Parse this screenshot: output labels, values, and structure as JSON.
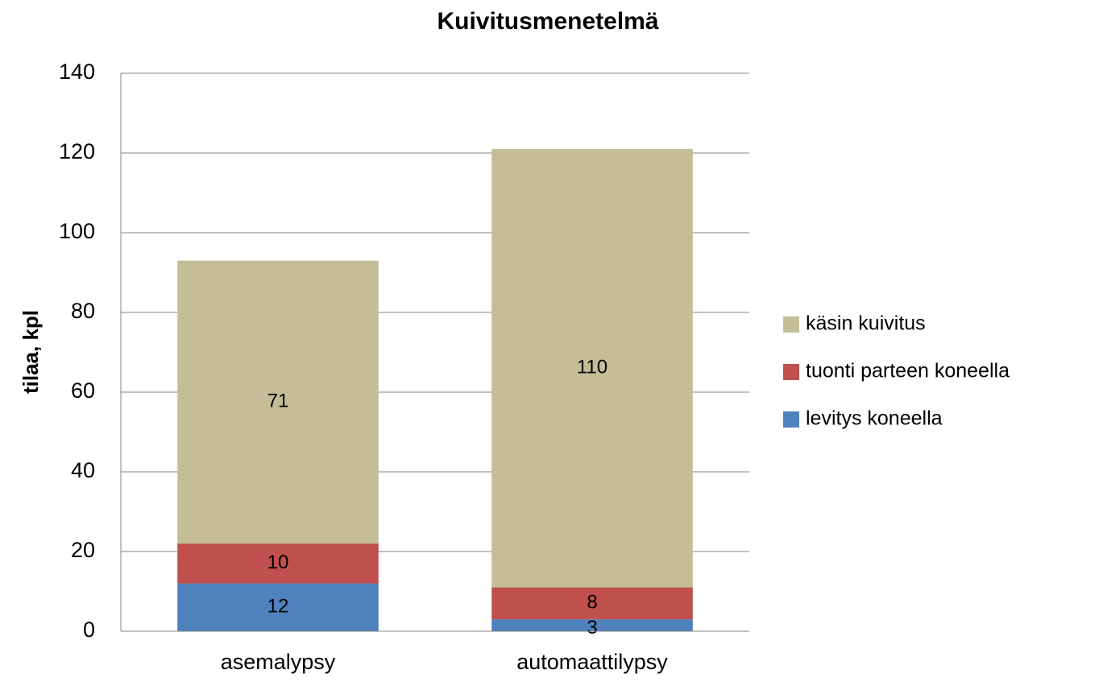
{
  "chart_data": {
    "type": "stacked_bar",
    "title": "Kuivitusmenetelmä",
    "y_label": "tilaa, kpl",
    "categories": [
      "asemalypsy",
      "automaattilypsy"
    ],
    "series": [
      {
        "name": "levitys koneella",
        "color": "#4f81bd",
        "values": [
          12,
          3
        ]
      },
      {
        "name": "tuonti parteen koneella",
        "color": "#c0504d",
        "values": [
          10,
          8
        ]
      },
      {
        "name": "käsin kuivitus",
        "color": "#c4bd97",
        "values": [
          71,
          110
        ]
      }
    ],
    "ylim": [
      0,
      140
    ],
    "yticks": [
      0,
      20,
      40,
      60,
      80,
      100,
      120,
      140
    ],
    "grid": true,
    "legend": "right"
  }
}
